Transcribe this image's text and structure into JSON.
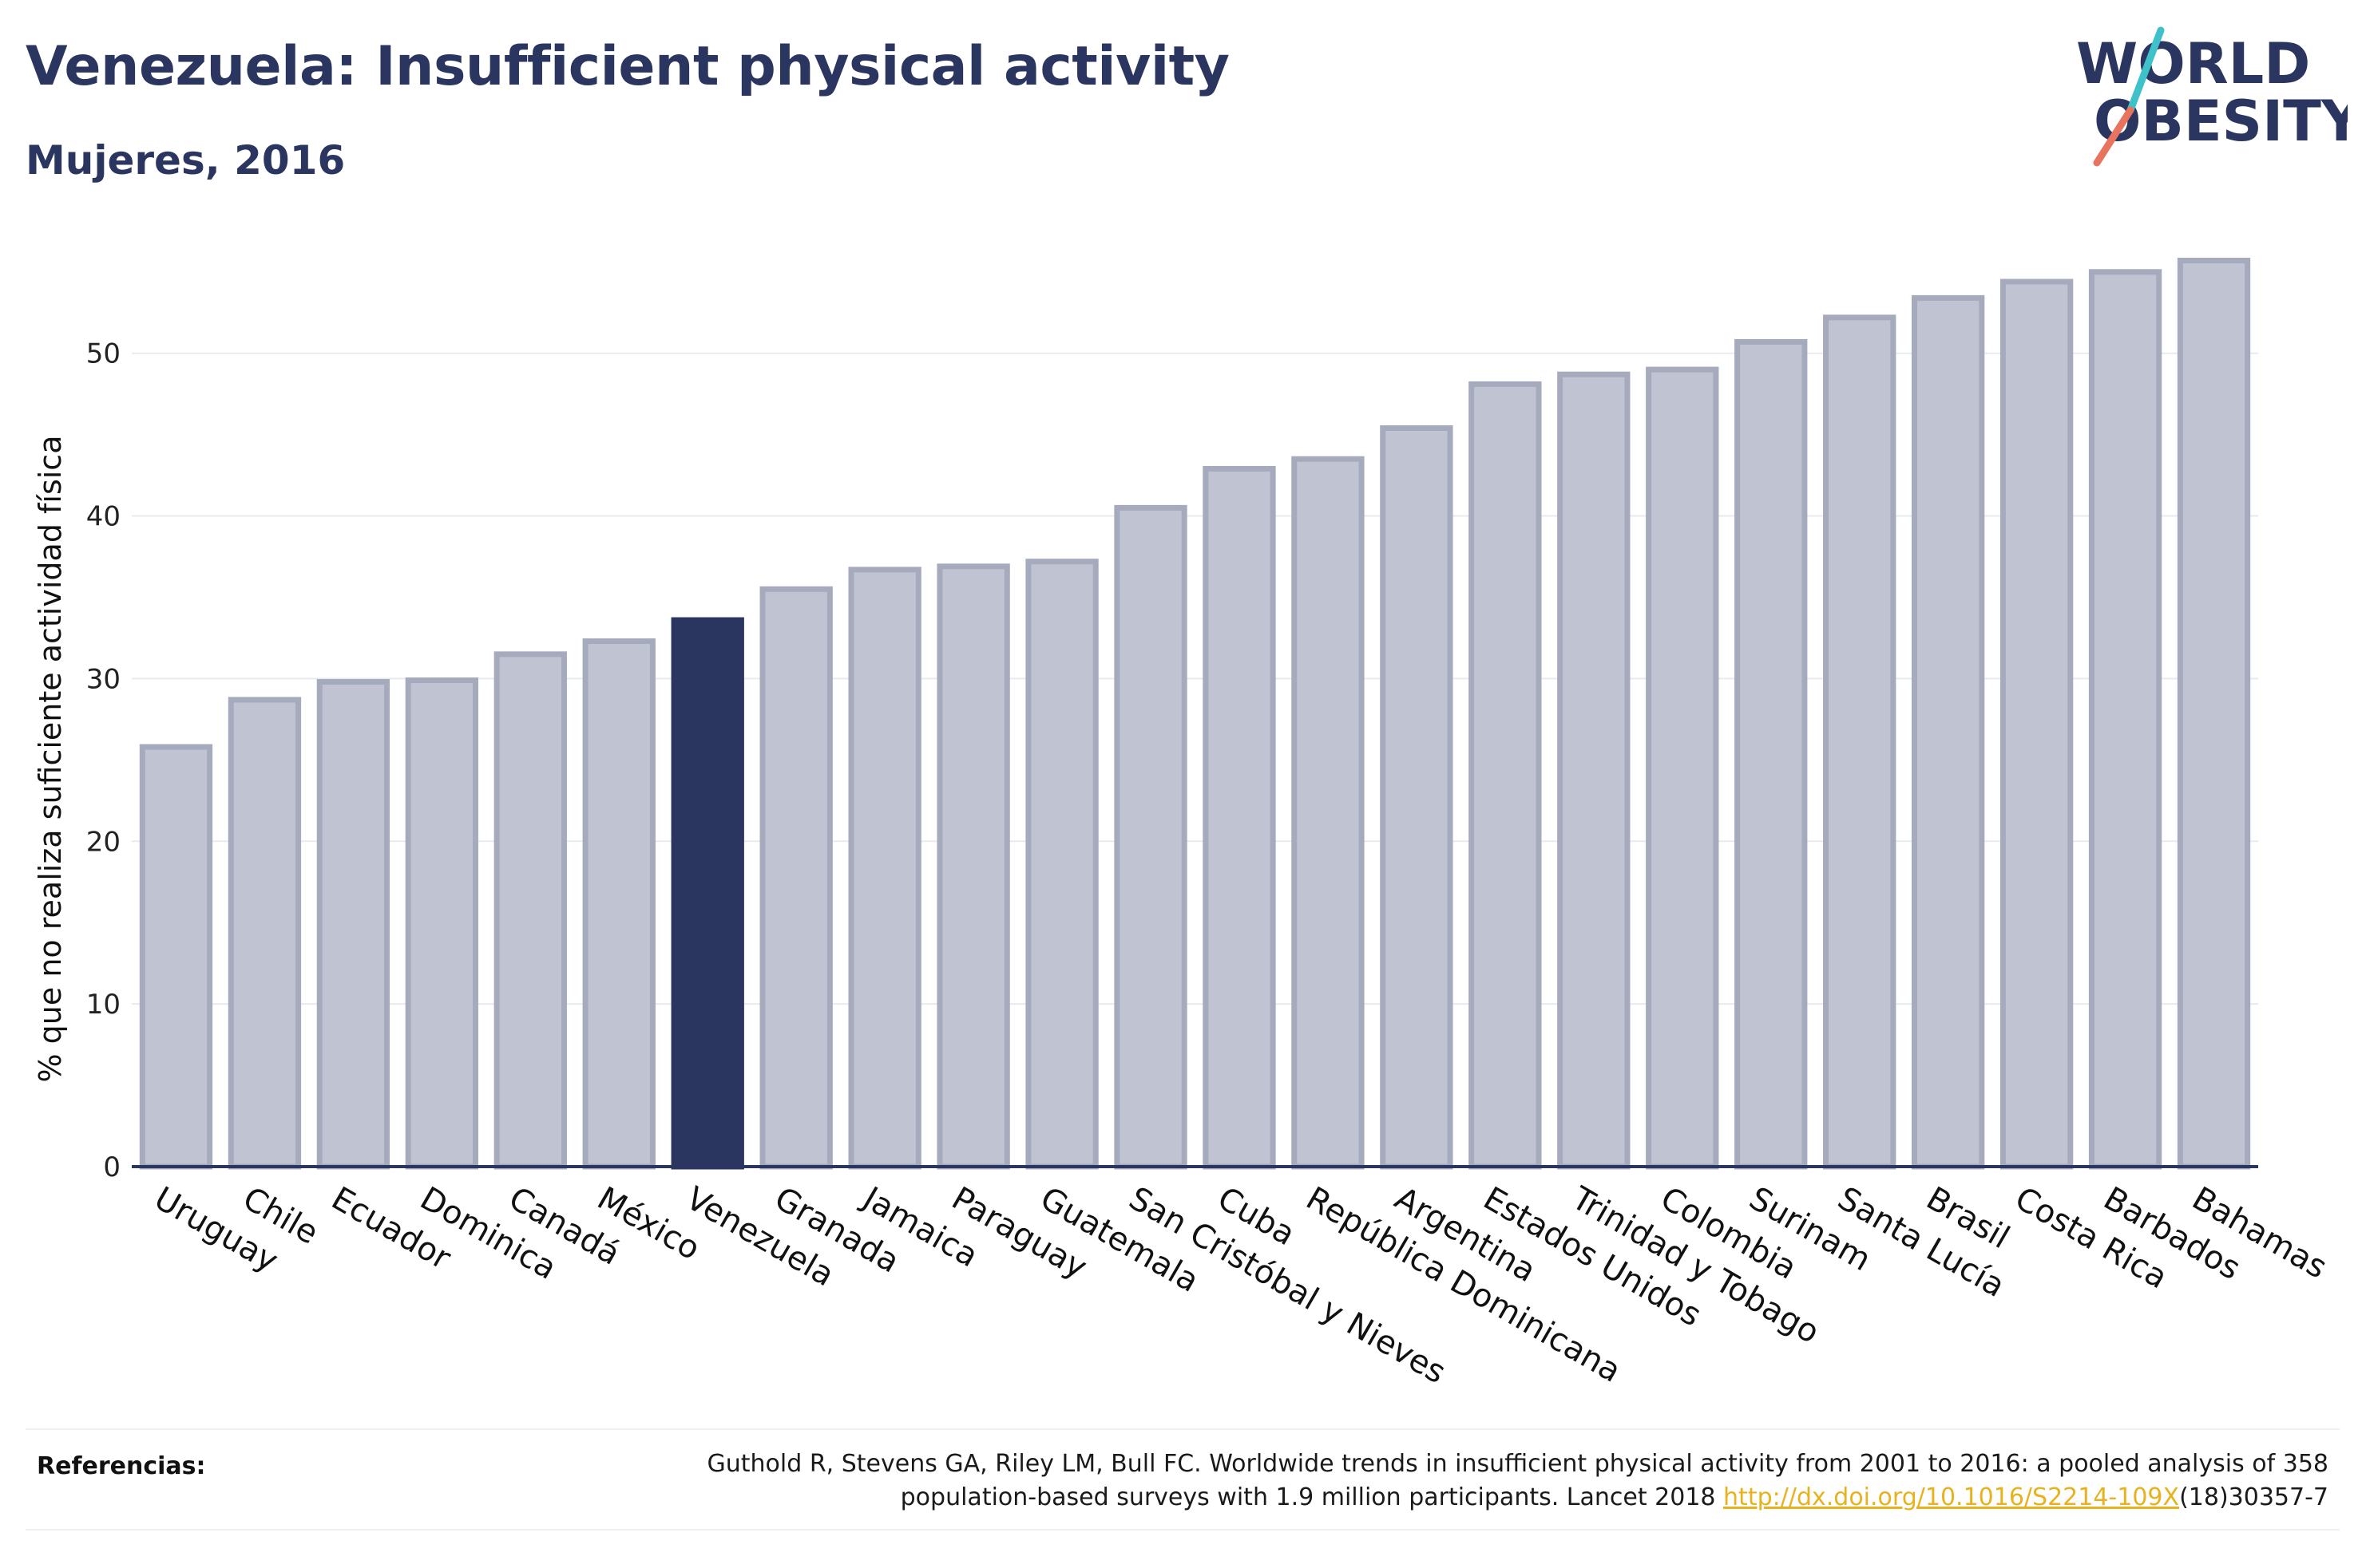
{
  "header": {
    "title": "Venezuela: Insufficient physical activity",
    "subtitle": "Mujeres, 2016"
  },
  "logo": {
    "line1": "WORLD",
    "line2": "OBESITY"
  },
  "colors": {
    "highlight": "#2b3660",
    "bar_fill": "#c0c3d1",
    "bar_stroke": "#a6aabd",
    "grid": "#e8eaef",
    "axis": "#2b3660",
    "link": "#e8b21f",
    "logo_slash_teal": "#3ec1c9",
    "logo_slash_coral": "#e8735e"
  },
  "chart_data": {
    "type": "bar",
    "title": "Venezuela: Insufficient physical activity",
    "subtitle": "Mujeres, 2016",
    "xlabel": "",
    "ylabel": "% que no realiza suficiente actividad física",
    "ylim": [
      0,
      57
    ],
    "yticks": [
      0,
      10,
      20,
      30,
      40,
      50
    ],
    "grid": true,
    "highlight": "Venezuela",
    "categories": [
      "Uruguay",
      "Chile",
      "Ecuador",
      "Dominica",
      "Canadá",
      "México",
      "Venezuela",
      "Granada",
      "Jamaica",
      "Paraguay",
      "Guatemala",
      "San Cristóbal y Nieves",
      "Cuba",
      "República Dominicana",
      "Argentina",
      "Estados Unidos",
      "Trinidad y Tobago",
      "Colombia",
      "Surinam",
      "Santa Lucía",
      "Brasil",
      "Costa Rica",
      "Barbados",
      "Bahamas"
    ],
    "values": [
      25.8,
      28.7,
      29.8,
      29.9,
      31.5,
      32.3,
      33.6,
      35.5,
      36.7,
      36.9,
      37.2,
      40.5,
      42.9,
      43.5,
      45.4,
      48.1,
      48.7,
      49.0,
      50.7,
      52.2,
      53.4,
      54.4,
      55.0,
      55.7
    ]
  },
  "references": {
    "label": "Referencias:",
    "line1": "Guthold R, Stevens GA, Riley LM, Bull FC. Worldwide trends in insufficient physical activity from 2001 to 2016: a pooled analysis of 358",
    "line2_before": "population-based surveys with 1.9 million participants. Lancet 2018 ",
    "link": "http://dx.doi.org/10.1016/S2214-109X",
    "line2_after": "(18)30357-7"
  }
}
